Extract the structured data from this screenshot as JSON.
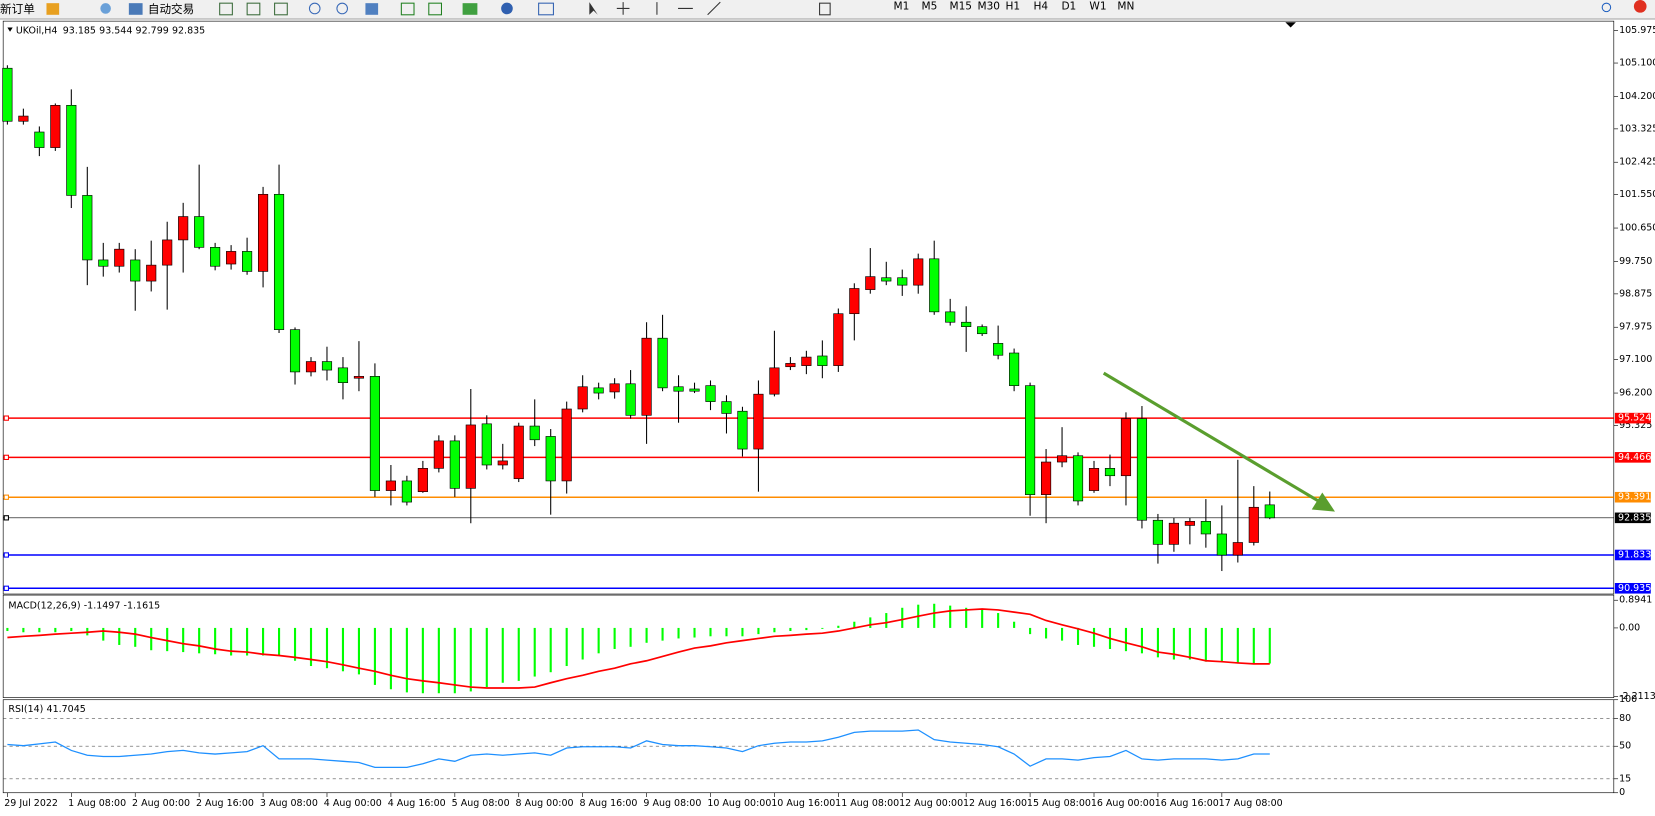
{
  "toolbar": {
    "items": [
      "新订单",
      "自动交易"
    ],
    "timeframes": [
      "M1",
      "M5",
      "M15",
      "M30",
      "H1",
      "H4",
      "D1",
      "W1",
      "MN"
    ]
  },
  "chart_data": [
    {
      "type": "candlestick",
      "symbol": "UKOil,H4",
      "categories": [
        "29 Jul 2022",
        null,
        null,
        null,
        "1 Aug 08:00",
        null,
        null,
        null,
        "2 Aug 00:00",
        null,
        null,
        null,
        "2 Aug 16:00",
        null,
        null,
        null,
        "3 Aug 08:00",
        null,
        null,
        null,
        "4 Aug 00:00",
        null,
        null,
        null,
        "4 Aug 16:00",
        null,
        null,
        null,
        "5 Aug 08:00",
        null,
        null,
        null,
        "8 Aug 00:00",
        null,
        null,
        null,
        "8 Aug 16:00",
        null,
        null,
        null,
        "9 Aug 08:00",
        null,
        null,
        null,
        "10 Aug 00:00",
        null,
        null,
        null,
        "10 Aug 16:00",
        null,
        null,
        null,
        "11 Aug 08:00",
        null,
        null,
        null,
        "12 Aug 00:00",
        null,
        null,
        null,
        "12 Aug 16:00",
        null,
        null,
        null,
        "15 Aug 08:00",
        null,
        null,
        null,
        "16 Aug 00:00",
        null,
        null,
        null,
        "16 Aug 16:00",
        null,
        null,
        null,
        "17 Aug 08:00",
        null,
        null,
        null
      ],
      "open": [
        104.96,
        103.53,
        103.24,
        102.82,
        103.96,
        101.53,
        99.79,
        99.62,
        99.79,
        99.22,
        99.65,
        100.33,
        100.96,
        100.13,
        99.68,
        100.02,
        99.48,
        101.56,
        97.91,
        96.77,
        97.05,
        96.88,
        96.6,
        96.65,
        93.57,
        93.83,
        93.54,
        94.17,
        94.91,
        93.63,
        95.37,
        94.26,
        93.89,
        95.31,
        95.03,
        93.83,
        95.77,
        96.34,
        96.23,
        96.45,
        95.6,
        97.68,
        96.37,
        96.31,
        96.4,
        95.97,
        95.71,
        94.69,
        96.17,
        96.91,
        96.94,
        97.2,
        96.94,
        98.34,
        98.99,
        99.31,
        99.31,
        99.11,
        99.82,
        98.39,
        98.11,
        97.99,
        97.54,
        97.28,
        96.4,
        93.46,
        94.34,
        94.51,
        93.57,
        94.17,
        93.97,
        95.51,
        92.77,
        92.12,
        92.63,
        92.74,
        92.4,
        91.83,
        92.17,
        93.185
      ],
      "high": [
        105.04,
        103.87,
        103.39,
        104.01,
        104.39,
        102.3,
        100.25,
        100.25,
        100.08,
        100.31,
        100.82,
        101.33,
        102.36,
        100.25,
        100.19,
        100.39,
        101.76,
        102.36,
        97.97,
        97.17,
        97.45,
        97.17,
        97.6,
        97.0,
        94.26,
        93.97,
        94.37,
        95.06,
        95.06,
        96.31,
        95.6,
        94.83,
        95.4,
        96.03,
        95.23,
        95.97,
        96.68,
        96.48,
        96.6,
        96.82,
        98.11,
        98.31,
        96.68,
        96.48,
        96.54,
        96.14,
        95.83,
        96.54,
        97.88,
        97.17,
        97.34,
        97.62,
        98.48,
        99.16,
        100.11,
        99.74,
        99.53,
        99.96,
        100.31,
        98.74,
        98.54,
        98.05,
        98.02,
        97.4,
        96.48,
        94.69,
        95.28,
        94.6,
        94.37,
        94.54,
        95.68,
        95.85,
        92.94,
        92.83,
        92.83,
        93.34,
        93.17,
        94.4,
        93.69,
        93.544
      ],
      "low": [
        103.44,
        103.44,
        102.59,
        102.73,
        101.19,
        99.11,
        99.34,
        99.45,
        98.42,
        98.94,
        98.45,
        99.45,
        100.08,
        99.51,
        99.53,
        99.39,
        99.05,
        97.82,
        96.43,
        96.65,
        96.54,
        96.03,
        96.25,
        93.4,
        93.17,
        93.17,
        93.51,
        94.06,
        93.4,
        92.69,
        94.14,
        94.14,
        93.8,
        94.77,
        92.92,
        93.49,
        95.68,
        96.03,
        96.05,
        95.51,
        94.83,
        96.25,
        95.4,
        96.2,
        95.74,
        95.11,
        94.49,
        93.54,
        96.11,
        96.82,
        96.71,
        96.6,
        96.77,
        97.62,
        98.88,
        99.11,
        98.82,
        98.88,
        98.31,
        98.02,
        97.31,
        97.74,
        97.11,
        96.25,
        92.89,
        92.69,
        94.2,
        93.17,
        93.51,
        93.69,
        93.17,
        92.55,
        91.6,
        91.92,
        92.12,
        92.03,
        91.4,
        91.63,
        92.09,
        92.799
      ],
      "close": [
        103.53,
        103.67,
        102.82,
        103.96,
        101.53,
        99.79,
        99.62,
        100.08,
        99.22,
        99.65,
        100.33,
        100.96,
        100.13,
        99.62,
        100.02,
        99.48,
        101.56,
        97.91,
        96.77,
        97.05,
        96.82,
        96.48,
        96.65,
        93.57,
        93.83,
        93.26,
        94.17,
        94.91,
        93.63,
        95.34,
        94.26,
        94.37,
        95.31,
        94.94,
        93.83,
        95.77,
        96.37,
        96.2,
        96.45,
        95.6,
        97.68,
        96.34,
        96.25,
        96.25,
        95.97,
        95.65,
        94.69,
        96.17,
        96.88,
        97.0,
        97.17,
        96.94,
        98.34,
        99.02,
        99.34,
        99.22,
        99.11,
        99.82,
        98.39,
        98.11,
        97.99,
        97.8,
        97.22,
        96.4,
        93.46,
        94.34,
        94.51,
        93.29,
        94.17,
        93.97,
        95.51,
        92.77,
        92.12,
        92.69,
        92.74,
        92.4,
        91.83,
        92.17,
        93.12,
        92.835
      ],
      "up_color": "#ff0000",
      "down_color": "#00ff00",
      "ylim": [
        90.78,
        106.23
      ],
      "yticks": [
        105.975,
        {
          "value": 105.1,
          "label": "105.100"
        },
        {
          "value": 104.2,
          "label": "104.200"
        },
        103.325,
        102.425,
        {
          "value": 101.55,
          "label": "101.550"
        },
        {
          "value": 100.65,
          "label": "100.650"
        },
        {
          "value": 99.75,
          "label": "99.750"
        },
        98.875,
        97.975,
        {
          "value": 97.1,
          "label": "97.100"
        },
        {
          "value": 96.2,
          "label": "96.200"
        },
        95.325
      ],
      "levels": [
        {
          "value": 95.524,
          "color": "#ff0000"
        },
        {
          "value": 94.466,
          "color": "#ff0000"
        },
        {
          "value": 93.391,
          "color": "#ff8c00"
        },
        {
          "value": 92.835,
          "color": "#000000"
        },
        {
          "value": 91.833,
          "color": "#0000ff"
        },
        {
          "value": 90.935,
          "color": "#0000ff"
        }
      ]
    },
    {
      "type": "macd",
      "title": "MACD(12,26,9)",
      "histogram": {
        "color": "#00ff00",
        "values": [
          -0.1,
          -0.14,
          -0.14,
          -0.14,
          -0.1,
          -0.24,
          -0.41,
          -0.55,
          -0.61,
          -0.72,
          -0.75,
          -0.78,
          -0.82,
          -0.85,
          -0.89,
          -0.89,
          -0.89,
          -0.89,
          -1.06,
          -1.23,
          -1.3,
          -1.4,
          -1.5,
          -1.84,
          -1.98,
          -2.08,
          -2.11,
          -2.11,
          -2.11,
          -2.05,
          -1.91,
          -1.77,
          -1.71,
          -1.57,
          -1.43,
          -1.23,
          -1.02,
          -0.82,
          -0.68,
          -0.61,
          -0.48,
          -0.41,
          -0.34,
          -0.31,
          -0.27,
          -0.27,
          -0.27,
          -0.2,
          -0.14,
          -0.1,
          -0.07,
          -0.03,
          0.07,
          0.2,
          0.34,
          0.48,
          0.65,
          0.75,
          0.78,
          0.72,
          0.65,
          0.61,
          0.48,
          0.2,
          -0.2,
          -0.34,
          -0.41,
          -0.55,
          -0.61,
          -0.68,
          -0.75,
          -0.82,
          -0.95,
          -1.02,
          -1.02,
          -1.09,
          -1.09,
          -1.12,
          -1.14,
          -1.1497
        ]
      },
      "signal": {
        "color": "#ff0000",
        "values": [
          -0.31,
          -0.27,
          -0.24,
          -0.2,
          -0.17,
          -0.14,
          -0.1,
          -0.14,
          -0.2,
          -0.31,
          -0.41,
          -0.51,
          -0.58,
          -0.68,
          -0.75,
          -0.78,
          -0.85,
          -0.89,
          -0.95,
          -1.02,
          -1.09,
          -1.19,
          -1.3,
          -1.4,
          -1.53,
          -1.64,
          -1.71,
          -1.77,
          -1.84,
          -1.91,
          -1.94,
          -1.94,
          -1.94,
          -1.91,
          -1.77,
          -1.64,
          -1.53,
          -1.4,
          -1.3,
          -1.16,
          -1.06,
          -0.92,
          -0.78,
          -0.65,
          -0.58,
          -0.48,
          -0.41,
          -0.34,
          -0.27,
          -0.24,
          -0.2,
          -0.17,
          -0.1,
          0,
          0.1,
          0.17,
          0.27,
          0.38,
          0.48,
          0.55,
          0.58,
          0.61,
          0.58,
          0.51,
          0.44,
          0.24,
          0.1,
          -0.03,
          -0.17,
          -0.34,
          -0.48,
          -0.61,
          -0.78,
          -0.85,
          -0.95,
          -1.06,
          -1.09,
          -1.13,
          -1.16,
          -1.1615
        ]
      },
      "ylim": [
        -2.25,
        1.06
      ],
      "yticks": [
        0.8941,
        {
          "value": 0,
          "label": "0.00"
        },
        -2.2113
      ]
    },
    {
      "type": "line",
      "title": "RSI(14)",
      "color": "#1e90ff",
      "values": [
        51.9,
        50.6,
        52.6,
        54.5,
        45.5,
        40.3,
        39.0,
        39.0,
        40.3,
        41.6,
        44.2,
        45.5,
        42.9,
        41.6,
        42.9,
        44.2,
        50.6,
        36.4,
        36.4,
        36.4,
        35.1,
        33.8,
        32.5,
        27.3,
        27.3,
        27.3,
        31.2,
        36.4,
        33.8,
        40.3,
        41.6,
        40.3,
        41.6,
        42.9,
        40.3,
        48.1,
        49.4,
        49.4,
        49.4,
        48.1,
        55.8,
        51.9,
        50.6,
        50.6,
        49.4,
        48.1,
        44.2,
        50.6,
        53.2,
        54.5,
        54.5,
        55.8,
        59.7,
        64.9,
        66.2,
        66.2,
        66.2,
        67.5,
        57.1,
        54.5,
        53.2,
        51.9,
        49.4,
        41.6,
        28.6,
        36.4,
        36.4,
        35.1,
        37.7,
        39.0,
        45.5,
        36.4,
        35.1,
        36.4,
        36.4,
        36.4,
        35.1,
        36.4,
        41.6,
        41.7045
      ],
      "ylim": [
        0,
        100
      ],
      "yticks": [
        100,
        80,
        50,
        15,
        0
      ]
    }
  ]
}
